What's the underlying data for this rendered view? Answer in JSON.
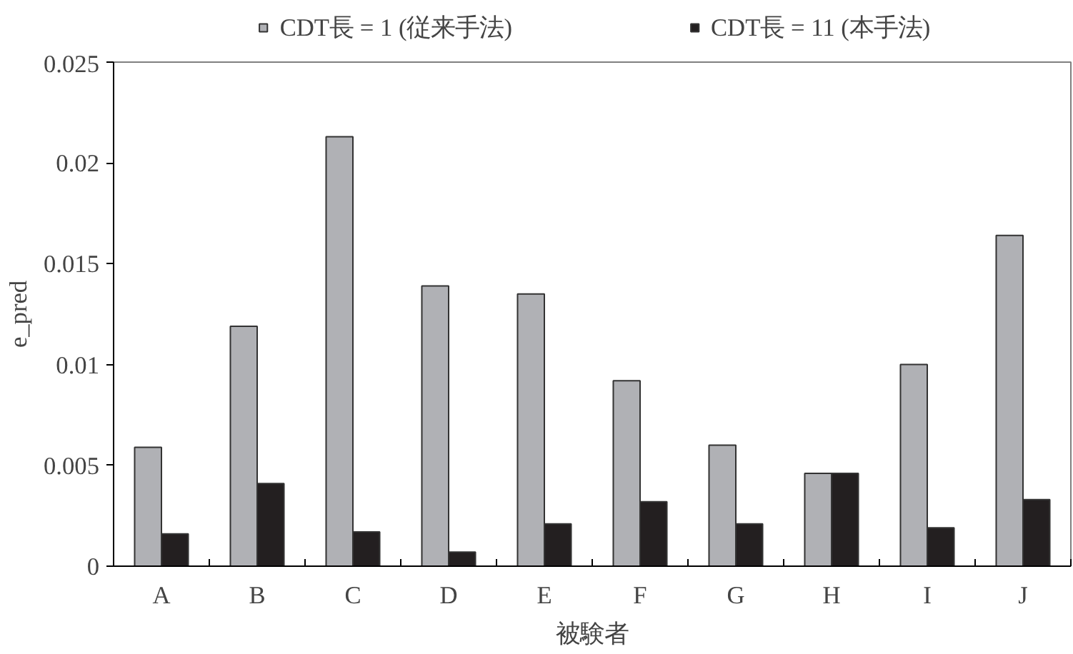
{
  "chart_data": {
    "type": "bar",
    "categories": [
      "A",
      "B",
      "C",
      "D",
      "E",
      "F",
      "G",
      "H",
      "I",
      "J"
    ],
    "series": [
      {
        "name": "CDT長 = 1 (従来手法)",
        "color": "#b0b1b5",
        "values": [
          0.0059,
          0.0119,
          0.0213,
          0.0139,
          0.0135,
          0.0092,
          0.006,
          0.0046,
          0.01,
          0.0164
        ]
      },
      {
        "name": "CDT長 = 11 (本手法)",
        "color": "#231f20",
        "values": [
          0.0016,
          0.0041,
          0.0017,
          0.0007,
          0.0021,
          0.0032,
          0.0021,
          0.0046,
          0.0019,
          0.0033
        ]
      }
    ],
    "xlabel": "被験者",
    "ylabel": "e_pred",
    "ylim": [
      0,
      0.025
    ],
    "yticks": [
      0,
      0.005,
      0.01,
      0.015,
      0.02,
      0.025
    ],
    "grid": false,
    "legend": "top"
  }
}
